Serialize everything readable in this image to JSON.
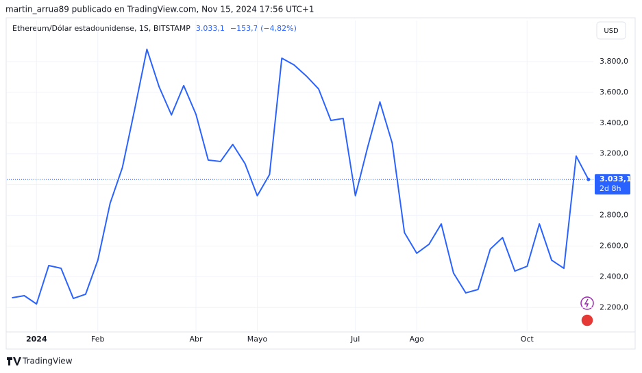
{
  "header": {
    "publisher": "martin_arrua89 publicado en TradingView.com, Nov 15, 2024 17:56 UTC+1",
    "brand": "TradingView"
  },
  "chart_data": {
    "type": "line",
    "title": "Ethereum/Dólar estadounidense, 1S, BITSTAMP",
    "last_price_label": "3.033,1",
    "change_label": "−153,7 (−4,82%)",
    "countdown": "2d 8h",
    "currency": "USD",
    "categories": [
      null,
      null,
      "2024",
      null,
      null,
      null,
      null,
      "Feb",
      null,
      null,
      null,
      null,
      null,
      null,
      null,
      "Abr",
      null,
      null,
      null,
      null,
      "Mayo",
      null,
      null,
      null,
      null,
      null,
      null,
      null,
      "Jul",
      null,
      null,
      null,
      null,
      "Ago",
      null,
      null,
      null,
      null,
      null,
      null,
      null,
      null,
      "Oct",
      null,
      null,
      null,
      null,
      null
    ],
    "series": [
      {
        "name": "ETHUSD",
        "color": "#2962ff",
        "values": [
          2263,
          2277,
          2223,
          2473,
          2455,
          2259,
          2286,
          2508,
          2878,
          3110,
          3488,
          3880,
          3635,
          3453,
          3644,
          3457,
          3159,
          3150,
          3261,
          3136,
          2927,
          3065,
          3822,
          3778,
          3706,
          3622,
          3417,
          3430,
          2927,
          3243,
          3537,
          3270,
          2687,
          2553,
          2611,
          2744,
          2424,
          2295,
          2317,
          2580,
          2655,
          2437,
          2468,
          2744,
          2508,
          2455,
          3185,
          3033.1
        ]
      }
    ],
    "ylim": [
      2041,
      4067
    ],
    "yticks": [
      {
        "value": 2200,
        "label": "2.200,0"
      },
      {
        "value": 2400,
        "label": "2.400,0"
      },
      {
        "value": 2600,
        "label": "2.600,0"
      },
      {
        "value": 2800,
        "label": "2.800,0"
      },
      {
        "value": 3000,
        "label": "3.000,0"
      },
      {
        "value": 3200,
        "label": "3.200,0"
      },
      {
        "value": 3400,
        "label": "3.400,0"
      },
      {
        "value": 3600,
        "label": "3.600,0"
      },
      {
        "value": 3800,
        "label": "3.800,0"
      }
    ],
    "grid": true
  }
}
